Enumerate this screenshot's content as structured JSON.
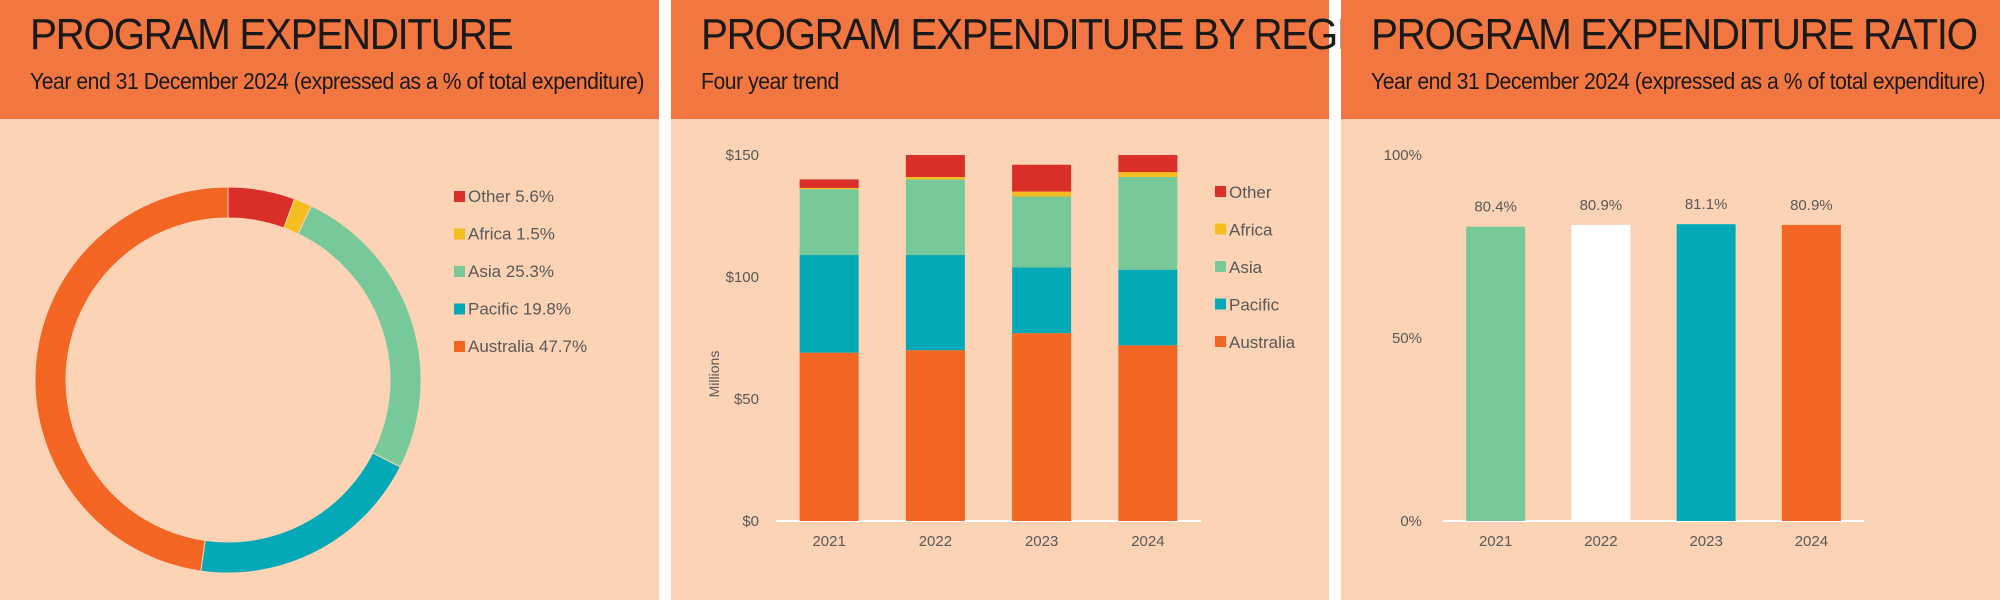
{
  "panels": [
    {
      "title": "PROGRAM EXPENDITURE",
      "subtitle": "Year end 31 December 2024 (expressed as a % of total expenditure)"
    },
    {
      "title": "PROGRAM EXPENDITURE BY REGION",
      "subtitle": "Four year trend"
    },
    {
      "title": "PROGRAM EXPENDITURE RATIO",
      "subtitle": "Year end 31 December 2024 (expressed as a % of total expenditure)"
    }
  ],
  "colors": {
    "panel_background": "#fdd3b6",
    "header_background": "#f27640",
    "Other": "#d92f28",
    "Africa": "#f5bd1f",
    "Asia": "#77c99a",
    "Pacific": "#03a9b6",
    "Australia": "#f26522",
    "ratio_bars": [
      "#77c99a",
      "#ffffff",
      "#03a9b6",
      "#f26522"
    ]
  },
  "chart_data": [
    {
      "type": "pie",
      "variant": "donut",
      "slices": [
        {
          "label": "Other",
          "legend_label": "Other 5.6%",
          "value": 5.6
        },
        {
          "label": "Africa",
          "legend_label": "Africa 1.5%",
          "value": 1.5
        },
        {
          "label": "Asia",
          "legend_label": "Asia 25.3%",
          "value": 25.3
        },
        {
          "label": "Pacific",
          "legend_label": "Pacific 19.8%",
          "value": 19.8
        },
        {
          "label": "Australia",
          "legend_label": "Australia 47.7%",
          "value": 47.7
        }
      ],
      "legend_position": "right"
    },
    {
      "type": "bar",
      "stacked": true,
      "categories": [
        "2021",
        "2022",
        "2023",
        "2024"
      ],
      "series": [
        {
          "name": "Australia",
          "values": [
            69,
            70,
            77,
            72
          ]
        },
        {
          "name": "Pacific",
          "values": [
            40,
            39,
            27,
            31
          ]
        },
        {
          "name": "Asia",
          "values": [
            27,
            31,
            29,
            38
          ]
        },
        {
          "name": "Africa",
          "values": [
            0.5,
            1,
            2,
            2
          ]
        },
        {
          "name": "Other",
          "values": [
            3.5,
            9,
            11,
            7
          ]
        }
      ],
      "ylabel": "Millions",
      "ylim": [
        0,
        150
      ],
      "yticks": [
        0,
        50,
        100,
        150
      ],
      "ytick_labels": [
        "$0",
        "$50",
        "$100",
        "$150"
      ],
      "legend_order": [
        "Other",
        "Africa",
        "Asia",
        "Pacific",
        "Australia"
      ],
      "legend_position": "right",
      "grid": false
    },
    {
      "type": "bar",
      "categories": [
        "2021",
        "2022",
        "2023",
        "2024"
      ],
      "values": [
        80.4,
        80.9,
        81.1,
        80.9
      ],
      "data_labels": [
        "80.4%",
        "80.9%",
        "81.1%",
        "80.9%"
      ],
      "ylim": [
        0,
        100
      ],
      "yticks": [
        0,
        50,
        100
      ],
      "ytick_labels": [
        "0%",
        "50%",
        "100%"
      ],
      "grid": false
    }
  ]
}
